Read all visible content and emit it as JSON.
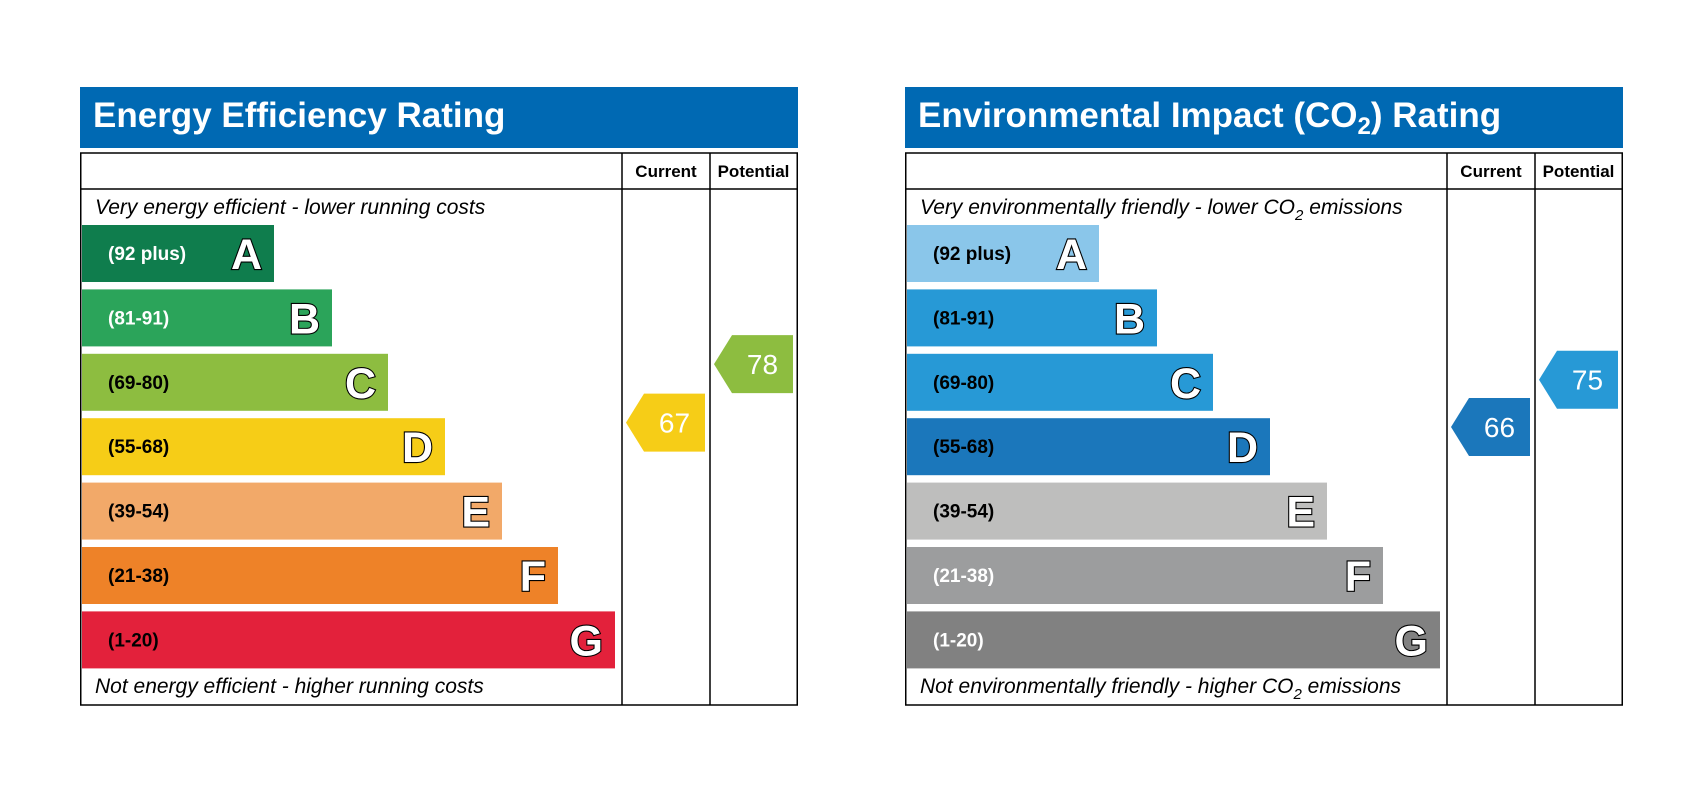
{
  "chart_data": [
    {
      "type": "rating-scale",
      "id": "energy",
      "title": "Energy Efficiency Rating",
      "title_sub": "",
      "title_suffix": "",
      "columns": [
        "Current",
        "Potential"
      ],
      "caption_top": {
        "before": "Very energy efficient - lower running costs",
        "sub": "",
        "after": ""
      },
      "caption_bottom": {
        "before": "Not energy efficient - higher running costs",
        "sub": "",
        "after": ""
      },
      "bands": [
        {
          "letter": "A",
          "range": "(92 plus)",
          "min": 92,
          "max": 100,
          "color": "#0f7d4d",
          "text_color": "#ffffff"
        },
        {
          "letter": "B",
          "range": "(81-91)",
          "min": 81,
          "max": 91,
          "color": "#2ba45a",
          "text_color": "#ffffff"
        },
        {
          "letter": "C",
          "range": "(69-80)",
          "min": 69,
          "max": 80,
          "color": "#8dbd40",
          "text_color": "#000000"
        },
        {
          "letter": "D",
          "range": "(55-68)",
          "min": 55,
          "max": 68,
          "color": "#f6cd17",
          "text_color": "#000000"
        },
        {
          "letter": "E",
          "range": "(39-54)",
          "min": 39,
          "max": 54,
          "color": "#f2a969",
          "text_color": "#000000"
        },
        {
          "letter": "F",
          "range": "(21-38)",
          "min": 21,
          "max": 38,
          "color": "#ee8228",
          "text_color": "#000000"
        },
        {
          "letter": "G",
          "range": "(1-20)",
          "min": 1,
          "max": 20,
          "color": "#e3213b",
          "text_color": "#000000"
        }
      ],
      "current": {
        "value": 67,
        "color": "#f6cd17"
      },
      "potential": {
        "value": 78,
        "color": "#8dbd40"
      }
    },
    {
      "type": "rating-scale",
      "id": "environmental",
      "title": "Environmental Impact (CO",
      "title_sub": "2",
      "title_suffix": ") Rating",
      "columns": [
        "Current",
        "Potential"
      ],
      "caption_top": {
        "before": "Very environmentally friendly - lower CO",
        "sub": "2",
        "after": " emissions"
      },
      "caption_bottom": {
        "before": "Not environmentally friendly - higher CO",
        "sub": "2",
        "after": " emissions"
      },
      "bands": [
        {
          "letter": "A",
          "range": "(92 plus)",
          "min": 92,
          "max": 100,
          "color": "#8ac6ea",
          "text_color": "#000000"
        },
        {
          "letter": "B",
          "range": "(81-91)",
          "min": 81,
          "max": 91,
          "color": "#2799d6",
          "text_color": "#000000"
        },
        {
          "letter": "C",
          "range": "(69-80)",
          "min": 69,
          "max": 80,
          "color": "#2799d6",
          "text_color": "#000000"
        },
        {
          "letter": "D",
          "range": "(55-68)",
          "min": 55,
          "max": 68,
          "color": "#1b77bb",
          "text_color": "#000000"
        },
        {
          "letter": "E",
          "range": "(39-54)",
          "min": 39,
          "max": 54,
          "color": "#bebebd",
          "text_color": "#000000"
        },
        {
          "letter": "F",
          "range": "(21-38)",
          "min": 21,
          "max": 38,
          "color": "#9c9d9e",
          "text_color": "#ffffff"
        },
        {
          "letter": "G",
          "range": "(1-20)",
          "min": 1,
          "max": 20,
          "color": "#818181",
          "text_color": "#ffffff"
        }
      ],
      "current": {
        "value": 66,
        "color": "#1b77bb"
      },
      "potential": {
        "value": 75,
        "color": "#2799d6"
      }
    }
  ]
}
